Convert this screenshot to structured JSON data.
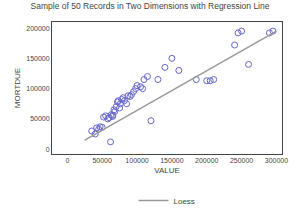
{
  "chart_data": {
    "type": "scatter",
    "title": "Sample of 50 Records in Two Dimensions with Regression Line",
    "x_label": "VALUE",
    "y_label": "MORTDUE",
    "series": [
      {
        "type": "scatter",
        "marker": "open circle",
        "color": "#6666cc",
        "x": [
          35000,
          40000,
          42000,
          45000,
          47000,
          50000,
          52000,
          55000,
          58000,
          60000,
          62000,
          63000,
          65000,
          65000,
          67000,
          68000,
          70000,
          72000,
          73000,
          75000,
          76000,
          78000,
          80000,
          82000,
          85000,
          87000,
          90000,
          92000,
          95000,
          98000,
          100000,
          105000,
          108000,
          110000,
          115000,
          120000,
          130000,
          140000,
          150000,
          160000,
          185000,
          200000,
          205000,
          210000,
          240000,
          245000,
          250000,
          260000,
          290000,
          295000
        ],
        "values": [
          30000,
          25000,
          35000,
          33000,
          37000,
          36000,
          53000,
          55000,
          50000,
          52000,
          12000,
          57000,
          54000,
          56000,
          65000,
          62000,
          70000,
          78000,
          80000,
          68000,
          75000,
          82000,
          85000,
          80000,
          75000,
          88000,
          87000,
          90000,
          95000,
          100000,
          105000,
          103000,
          100000,
          115000,
          120000,
          47000,
          115000,
          135000,
          150000,
          130000,
          115000,
          113000,
          113000,
          115000,
          172000,
          192000,
          195000,
          140000,
          192000,
          195000
        ]
      },
      {
        "name": "Loess",
        "type": "line",
        "color": "#999999",
        "x": [
          25000,
          300000
        ],
        "values": [
          15000,
          195000
        ]
      }
    ],
    "xlim": [
      -22000,
      308000
    ],
    "ylim": [
      -8000,
      210000
    ],
    "xticks": [
      0,
      50000,
      100000,
      150000,
      200000,
      250000,
      300000
    ],
    "yticks": [
      0,
      50000,
      100000,
      150000,
      200000
    ],
    "grid": false,
    "legend": "bottom"
  }
}
